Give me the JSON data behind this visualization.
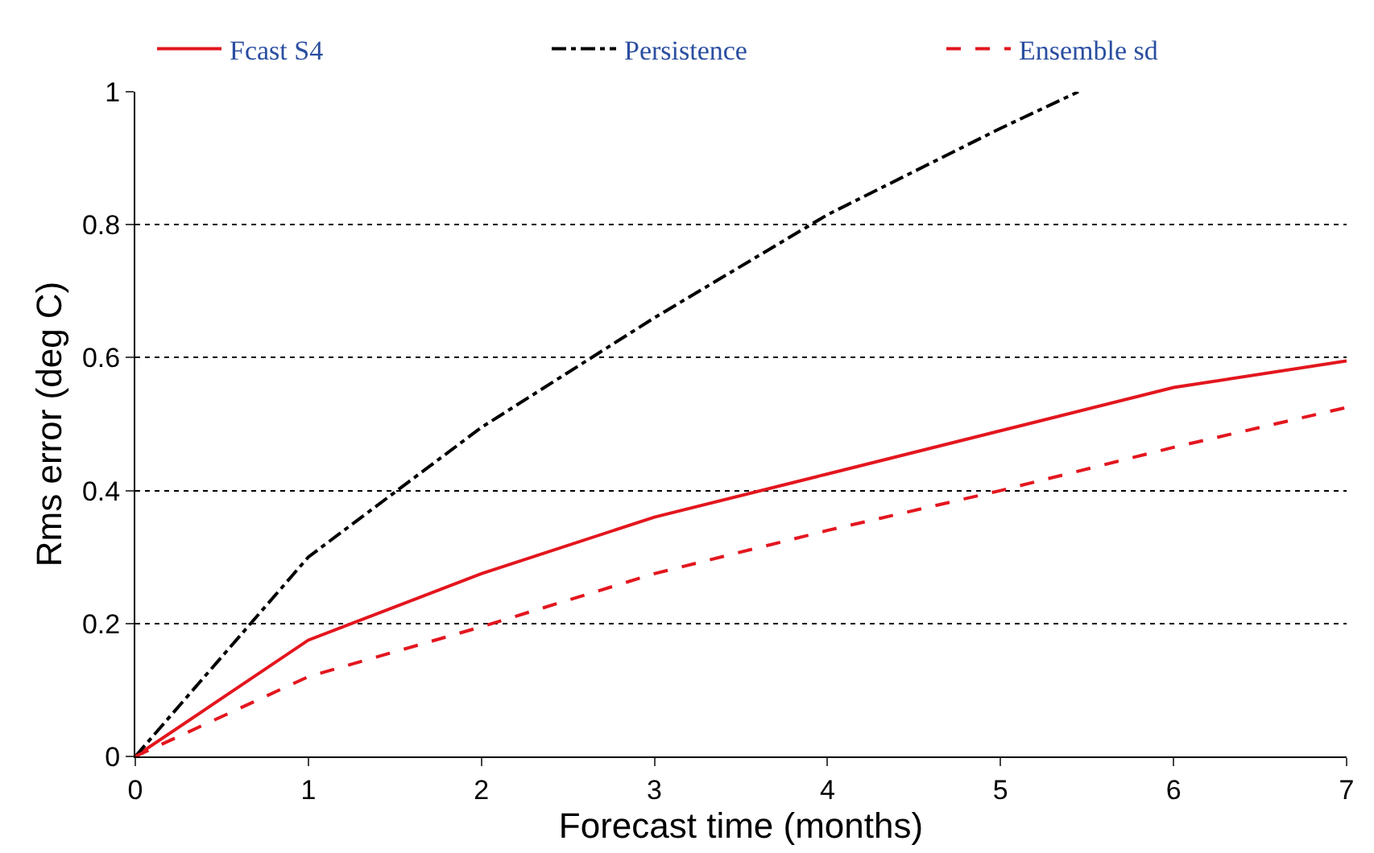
{
  "chart_data": {
    "type": "line",
    "xlabel": "Forecast time (months)",
    "ylabel": "Rms error (deg C)",
    "x": [
      0,
      1,
      2,
      3,
      4,
      5,
      6,
      7
    ],
    "series": [
      {
        "name": "Fcast S4",
        "color": "#e3161e",
        "line_style": "solid",
        "values": [
          0,
          0.175,
          0.275,
          0.36,
          0.425,
          0.49,
          0.555,
          0.595
        ]
      },
      {
        "name": "Persistence",
        "color": "#000000",
        "line_style": "dashdot",
        "x": [
          0,
          1,
          2,
          3,
          4,
          5,
          5.45
        ],
        "values": [
          0,
          0.3,
          0.495,
          0.66,
          0.815,
          0.945,
          1
        ]
      },
      {
        "name": "Ensemble sd",
        "color": "#e3161e",
        "line_style": "dashed",
        "values": [
          0,
          0.12,
          0.195,
          0.275,
          0.34,
          0.4,
          0.465,
          0.525
        ]
      }
    ],
    "xlim": [
      0,
      7
    ],
    "xticks": [
      0,
      1,
      2,
      3,
      4,
      5,
      6,
      7
    ],
    "ylim": [
      0,
      1
    ],
    "yticks": [
      0,
      0.2,
      0.4,
      0.6,
      0.8,
      1
    ],
    "grid": "y",
    "legend": "top",
    "marker": "none"
  }
}
